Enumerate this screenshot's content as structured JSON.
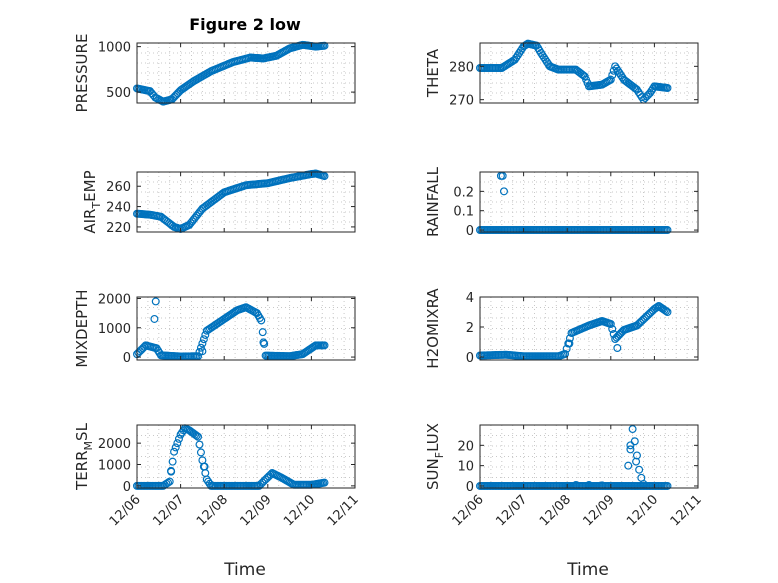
{
  "figure_title": "Figure 2 low",
  "series_color": "#0072BD",
  "chart_data": [
    {
      "type": "scatter",
      "ylabel_parts": [
        "PRESSURE"
      ],
      "ylim": [
        380,
        1040
      ],
      "yticks": [
        500,
        1000
      ],
      "ytick_labels": [
        "500",
        "1000"
      ],
      "xticks": [
        "12/06",
        "12/07",
        "12/08",
        "12/09",
        "12/10",
        "12/11"
      ],
      "x_time": true,
      "grid": true,
      "anchors": [
        [
          0.0,
          540
        ],
        [
          0.2,
          520
        ],
        [
          0.3,
          510
        ],
        [
          0.42,
          440
        ],
        [
          0.6,
          395
        ],
        [
          0.8,
          420
        ],
        [
          1.0,
          520
        ],
        [
          1.3,
          620
        ],
        [
          1.7,
          730
        ],
        [
          2.2,
          830
        ],
        [
          2.6,
          880
        ],
        [
          2.9,
          870
        ],
        [
          3.2,
          900
        ],
        [
          3.5,
          980
        ],
        [
          3.8,
          1020
        ],
        [
          4.1,
          1000
        ],
        [
          4.3,
          1010
        ]
      ]
    },
    {
      "type": "scatter",
      "ylabel_parts": [
        "THETA"
      ],
      "ylim": [
        269,
        287
      ],
      "yticks": [
        270,
        280
      ],
      "ytick_labels": [
        "270",
        "280"
      ],
      "xticks": [
        "12/06",
        "12/07",
        "12/08",
        "12/09",
        "12/10",
        "12/11"
      ],
      "x_time": true,
      "grid": true,
      "anchors": [
        [
          0.0,
          279.5
        ],
        [
          0.5,
          279.5
        ],
        [
          0.8,
          282
        ],
        [
          1.0,
          286
        ],
        [
          1.1,
          286.8
        ],
        [
          1.3,
          286.2
        ],
        [
          1.4,
          284
        ],
        [
          1.6,
          280
        ],
        [
          1.8,
          279
        ],
        [
          2.2,
          279
        ],
        [
          2.4,
          277
        ],
        [
          2.5,
          274
        ],
        [
          2.8,
          274.5
        ],
        [
          3.0,
          276
        ],
        [
          3.1,
          280
        ],
        [
          3.3,
          276
        ],
        [
          3.6,
          273
        ],
        [
          3.75,
          270
        ],
        [
          3.9,
          272
        ],
        [
          4.0,
          274
        ],
        [
          4.3,
          273.5
        ]
      ]
    },
    {
      "type": "scatter",
      "ylabel_parts": [
        "AIR",
        "T",
        "EMP"
      ],
      "ylim": [
        215,
        274
      ],
      "yticks": [
        220,
        240,
        260
      ],
      "ytick_labels": [
        "220",
        "240",
        "260"
      ],
      "xticks": [
        "12/06",
        "12/07",
        "12/08",
        "12/09",
        "12/10",
        "12/11"
      ],
      "x_time": true,
      "grid": true,
      "anchors": [
        [
          0.0,
          233
        ],
        [
          0.3,
          232
        ],
        [
          0.55,
          230
        ],
        [
          0.7,
          225
        ],
        [
          0.85,
          220
        ],
        [
          1.0,
          218
        ],
        [
          1.2,
          222
        ],
        [
          1.5,
          238
        ],
        [
          2.0,
          254
        ],
        [
          2.5,
          261
        ],
        [
          3.0,
          263
        ],
        [
          3.5,
          268
        ],
        [
          4.0,
          272
        ],
        [
          4.1,
          272.5
        ],
        [
          4.3,
          270
        ]
      ]
    },
    {
      "type": "scatter",
      "ylabel_parts": [
        "RAINFALL"
      ],
      "ylim": [
        -0.01,
        0.3
      ],
      "yticks": [
        0,
        0.1,
        0.2
      ],
      "ytick_labels": [
        "0",
        "0.1",
        "0.2"
      ],
      "xticks": [
        "12/06",
        "12/07",
        "12/08",
        "12/09",
        "12/10",
        "12/11"
      ],
      "x_time": true,
      "grid": true,
      "anchors": [
        [
          0.0,
          0
        ],
        [
          4.3,
          0
        ]
      ],
      "extra_points": [
        [
          0.48,
          0.28
        ],
        [
          0.52,
          0.28
        ],
        [
          0.55,
          0.2
        ]
      ]
    },
    {
      "type": "scatter",
      "ylabel_parts": [
        "MIXDEPTH"
      ],
      "ylim": [
        -100,
        2050
      ],
      "yticks": [
        0,
        1000,
        2000
      ],
      "ytick_labels": [
        "0",
        "1000",
        "2000"
      ],
      "xticks": [
        "12/06",
        "12/07",
        "12/08",
        "12/09",
        "12/10",
        "12/11"
      ],
      "x_time": true,
      "grid": true,
      "anchors": [
        [
          0.0,
          100
        ],
        [
          0.2,
          400
        ],
        [
          0.45,
          300
        ],
        [
          0.55,
          60
        ],
        [
          1.0,
          20
        ],
        [
          1.4,
          30
        ],
        [
          1.6,
          900
        ],
        [
          2.0,
          1300
        ],
        [
          2.3,
          1600
        ],
        [
          2.5,
          1700
        ],
        [
          2.75,
          1500
        ],
        [
          2.85,
          1250
        ],
        [
          2.95,
          50
        ],
        [
          3.5,
          30
        ],
        [
          3.8,
          100
        ],
        [
          4.1,
          400
        ],
        [
          4.3,
          400
        ]
      ],
      "extra_points": [
        [
          0.4,
          1300
        ],
        [
          0.43,
          1900
        ],
        [
          2.9,
          500
        ],
        [
          1.5,
          200
        ]
      ]
    },
    {
      "type": "scatter",
      "ylabel_parts": [
        "H2OMIXRA"
      ],
      "ylim": [
        -0.2,
        4.0
      ],
      "yticks": [
        0,
        2,
        4
      ],
      "ytick_labels": [
        "0",
        "2",
        "4"
      ],
      "xticks": [
        "12/06",
        "12/07",
        "12/08",
        "12/09",
        "12/10",
        "12/11"
      ],
      "x_time": true,
      "grid": true,
      "anchors": [
        [
          0.0,
          0.1
        ],
        [
          0.6,
          0.15
        ],
        [
          1.0,
          0.05
        ],
        [
          1.8,
          0.05
        ],
        [
          1.95,
          0.2
        ],
        [
          2.1,
          1.6
        ],
        [
          2.5,
          2.1
        ],
        [
          2.8,
          2.4
        ],
        [
          3.0,
          2.2
        ],
        [
          3.1,
          1.2
        ],
        [
          3.3,
          1.8
        ],
        [
          3.6,
          2.1
        ],
        [
          4.0,
          3.2
        ],
        [
          4.1,
          3.4
        ],
        [
          4.3,
          3.0
        ]
      ],
      "extra_points": [
        [
          2.05,
          0.9
        ],
        [
          3.15,
          0.6
        ]
      ]
    },
    {
      "type": "scatter",
      "ylabel_parts": [
        "TERR",
        "M",
        "SL"
      ],
      "ylim": [
        -100,
        2850
      ],
      "yticks": [
        0,
        1000,
        2000
      ],
      "ytick_labels": [
        "0",
        "1000",
        "2000"
      ],
      "xticks": [
        "12/06",
        "12/07",
        "12/08",
        "12/09",
        "12/10",
        "12/11"
      ],
      "x_time": true,
      "grid": true,
      "anchors": [
        [
          0.0,
          0
        ],
        [
          0.6,
          0
        ],
        [
          0.75,
          200
        ],
        [
          0.85,
          1600
        ],
        [
          1.0,
          2400
        ],
        [
          1.1,
          2700
        ],
        [
          1.2,
          2600
        ],
        [
          1.4,
          2300
        ],
        [
          1.5,
          1200
        ],
        [
          1.6,
          300
        ],
        [
          1.7,
          0
        ],
        [
          2.8,
          0
        ],
        [
          2.95,
          300
        ],
        [
          3.1,
          600
        ],
        [
          3.3,
          400
        ],
        [
          3.6,
          50
        ],
        [
          4.0,
          50
        ],
        [
          4.3,
          150
        ]
      ],
      "extra_points": [
        [
          0.78,
          700
        ],
        [
          1.55,
          900
        ]
      ]
    },
    {
      "type": "scatter",
      "ylabel_parts": [
        "SUN",
        "F",
        "LUX"
      ],
      "ylim": [
        -1,
        30
      ],
      "yticks": [
        0,
        10,
        20
      ],
      "ytick_labels": [
        "0",
        "10",
        "20"
      ],
      "xticks": [
        "12/06",
        "12/07",
        "12/08",
        "12/09",
        "12/10",
        "12/11"
      ],
      "x_time": true,
      "grid": true,
      "anchors": [
        [
          0.0,
          0
        ],
        [
          3.3,
          0
        ],
        [
          4.3,
          0
        ]
      ],
      "extra_points": [
        [
          3.4,
          10
        ],
        [
          3.45,
          18
        ],
        [
          3.5,
          28
        ],
        [
          3.55,
          22
        ],
        [
          3.6,
          15
        ],
        [
          3.65,
          8
        ],
        [
          3.7,
          4
        ],
        [
          3.75,
          1
        ],
        [
          3.45,
          20
        ],
        [
          3.58,
          12
        ],
        [
          2.2,
          0.5
        ],
        [
          2.5,
          0.5
        ],
        [
          2.8,
          0.3
        ]
      ]
    }
  ],
  "xlabel_left": "Time",
  "xlabel_right": "Time"
}
